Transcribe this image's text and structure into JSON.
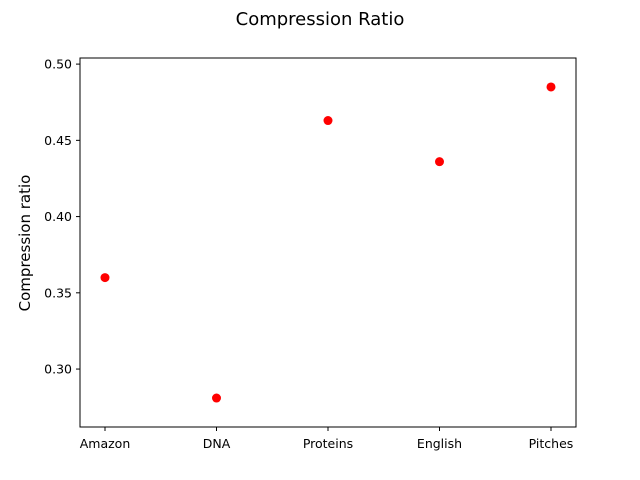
{
  "chart_data": {
    "type": "scatter",
    "title": "Compression Ratio",
    "xlabel": "",
    "ylabel": "Compression ratio",
    "categories": [
      "Amazon",
      "DNA",
      "Proteins",
      "English",
      "Pitches"
    ],
    "values": [
      0.36,
      0.281,
      0.463,
      0.436,
      0.485
    ],
    "ylim": [
      0.262,
      0.504
    ],
    "yticks": [
      0.3,
      0.35,
      0.4,
      0.45,
      0.5
    ],
    "ytick_labels": [
      "0.30",
      "0.35",
      "0.40",
      "0.45",
      "0.50"
    ],
    "marker_color": "#ff0000",
    "grid": false,
    "legend": false
  }
}
